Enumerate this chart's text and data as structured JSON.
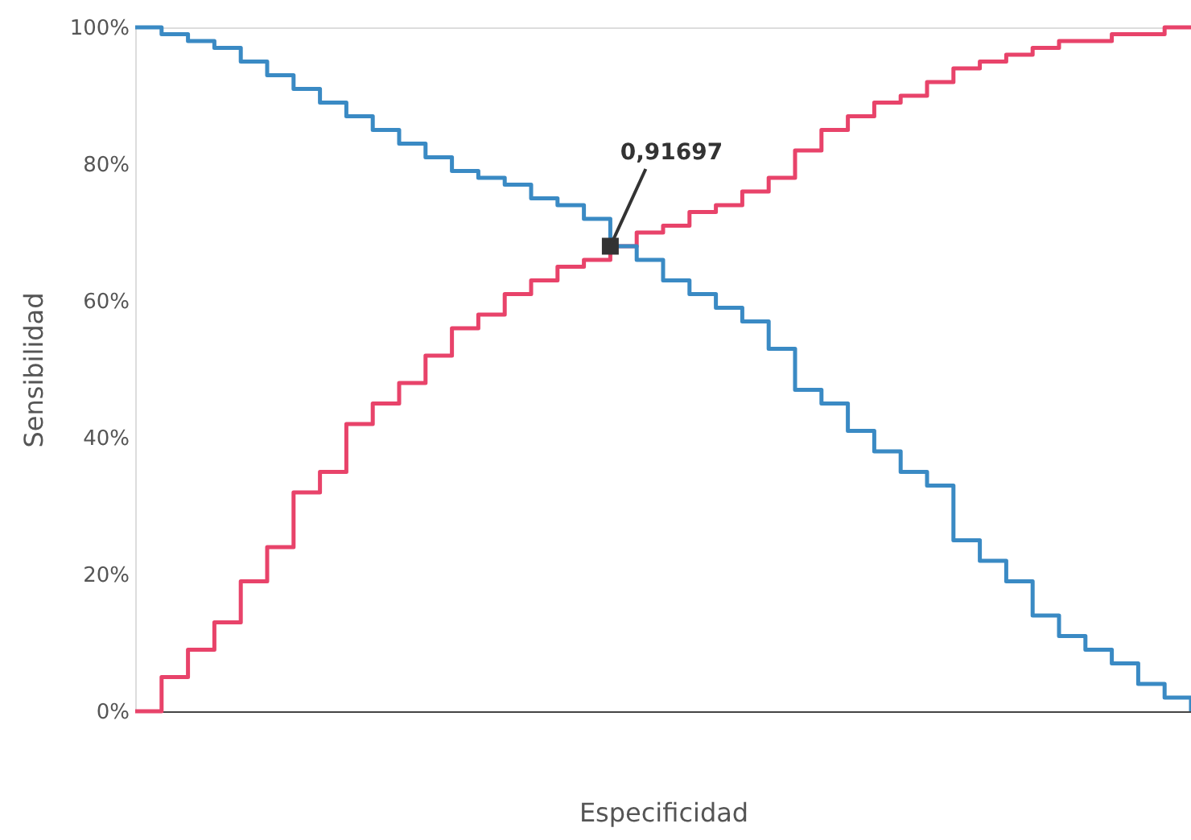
{
  "chart_data": {
    "type": "step",
    "xlabel": "Especificidad",
    "ylabel": "Sensibilidad",
    "categories": [
      null,
      null,
      null,
      null,
      null,
      null,
      null,
      null,
      null,
      null,
      null,
      null,
      null,
      null,
      null,
      null,
      null,
      null,
      null,
      null,
      null,
      null,
      null,
      null,
      null,
      null,
      null,
      null,
      null,
      null,
      null,
      null,
      null,
      null,
      null,
      null,
      null,
      null,
      null,
      null,
      null
    ],
    "series": [
      {
        "color": "#e8436a",
        "values": [
          0,
          5,
          9,
          13,
          19,
          24,
          32,
          35,
          42,
          45,
          48,
          52,
          56,
          58,
          61,
          63,
          65,
          66,
          68,
          70,
          71,
          73,
          74,
          76,
          78,
          82,
          85,
          87,
          89,
          90,
          92,
          94,
          95,
          96,
          97,
          98,
          98,
          99,
          99,
          100,
          100
        ]
      },
      {
        "color": "#3a8ac4",
        "values": [
          100,
          99,
          98,
          97,
          95,
          93,
          91,
          89,
          87,
          85,
          83,
          81,
          79,
          78,
          77,
          75,
          74,
          72,
          68,
          66,
          63,
          61,
          59,
          57,
          53,
          47,
          45,
          41,
          38,
          35,
          33,
          25,
          22,
          19,
          14,
          11,
          9,
          7,
          4,
          2,
          0
        ]
      },
      {
        "type": "scatter",
        "marker": "square",
        "color": "#333333",
        "values": [
          null,
          null,
          null,
          null,
          null,
          null,
          null,
          null,
          null,
          null,
          null,
          null,
          null,
          null,
          null,
          null,
          null,
          null,
          68,
          null,
          null,
          null,
          null,
          null,
          null,
          null,
          null,
          null,
          null,
          null,
          null,
          null,
          null,
          null,
          null,
          null,
          null,
          null,
          null,
          null,
          null
        ]
      }
    ],
    "annotations": [
      "0,91697"
    ],
    "ylim": [
      0,
      100
    ],
    "yticks": [
      {
        "value": 0,
        "label": "0%"
      },
      {
        "value": 20,
        "label": "20%"
      },
      {
        "value": 40,
        "label": "40%"
      },
      {
        "value": 60,
        "label": "60%"
      },
      {
        "value": 80,
        "label": "80%"
      },
      {
        "value": 100,
        "label": "100%"
      }
    ],
    "tick_labels": "y",
    "grid": false
  }
}
